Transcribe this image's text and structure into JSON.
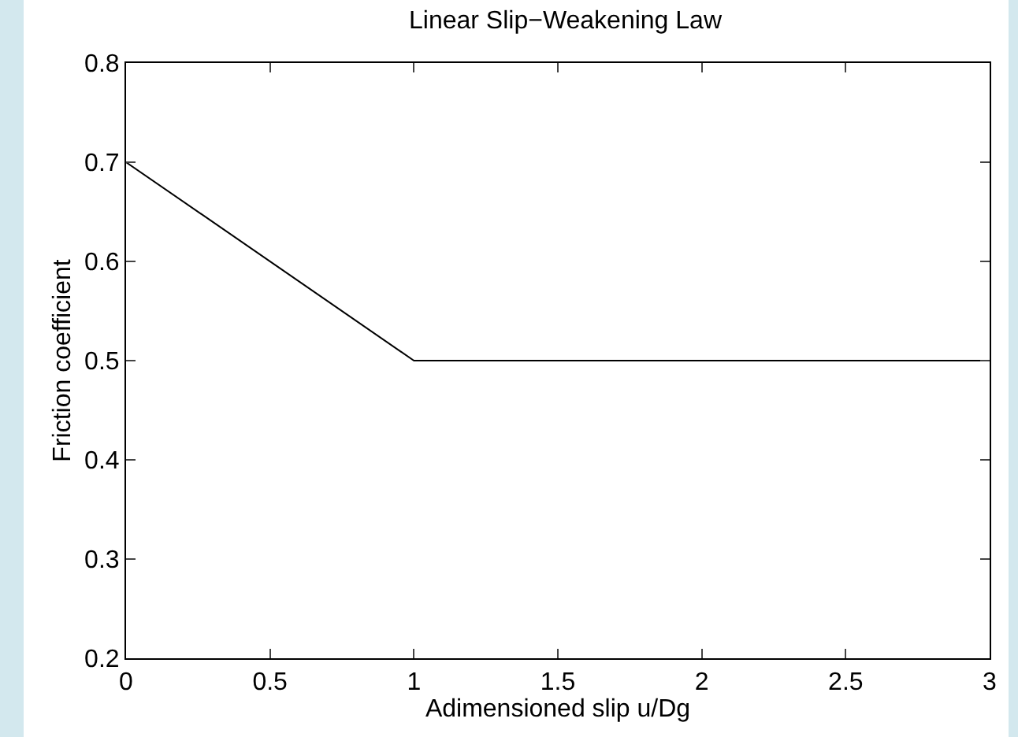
{
  "chart_data": {
    "type": "line",
    "title": "Linear Slip−Weakening Law",
    "xlabel": "Adimensioned slip u/Dg",
    "ylabel": "Friction coefficient",
    "x": [
      0,
      1,
      3
    ],
    "series": [
      {
        "color": "#000000",
        "values": [
          0.7,
          0.5,
          0.5
        ]
      }
    ],
    "xlim": [
      0,
      3
    ],
    "xticks": [
      0,
      0.5,
      1,
      1.5,
      2,
      2.5,
      3
    ],
    "ylim": [
      0.2,
      0.8
    ],
    "yticks": [
      0.2,
      0.3,
      0.4,
      0.5,
      0.6,
      0.7,
      0.8
    ],
    "grid": false,
    "marker": "none",
    "line_style": "solid"
  }
}
